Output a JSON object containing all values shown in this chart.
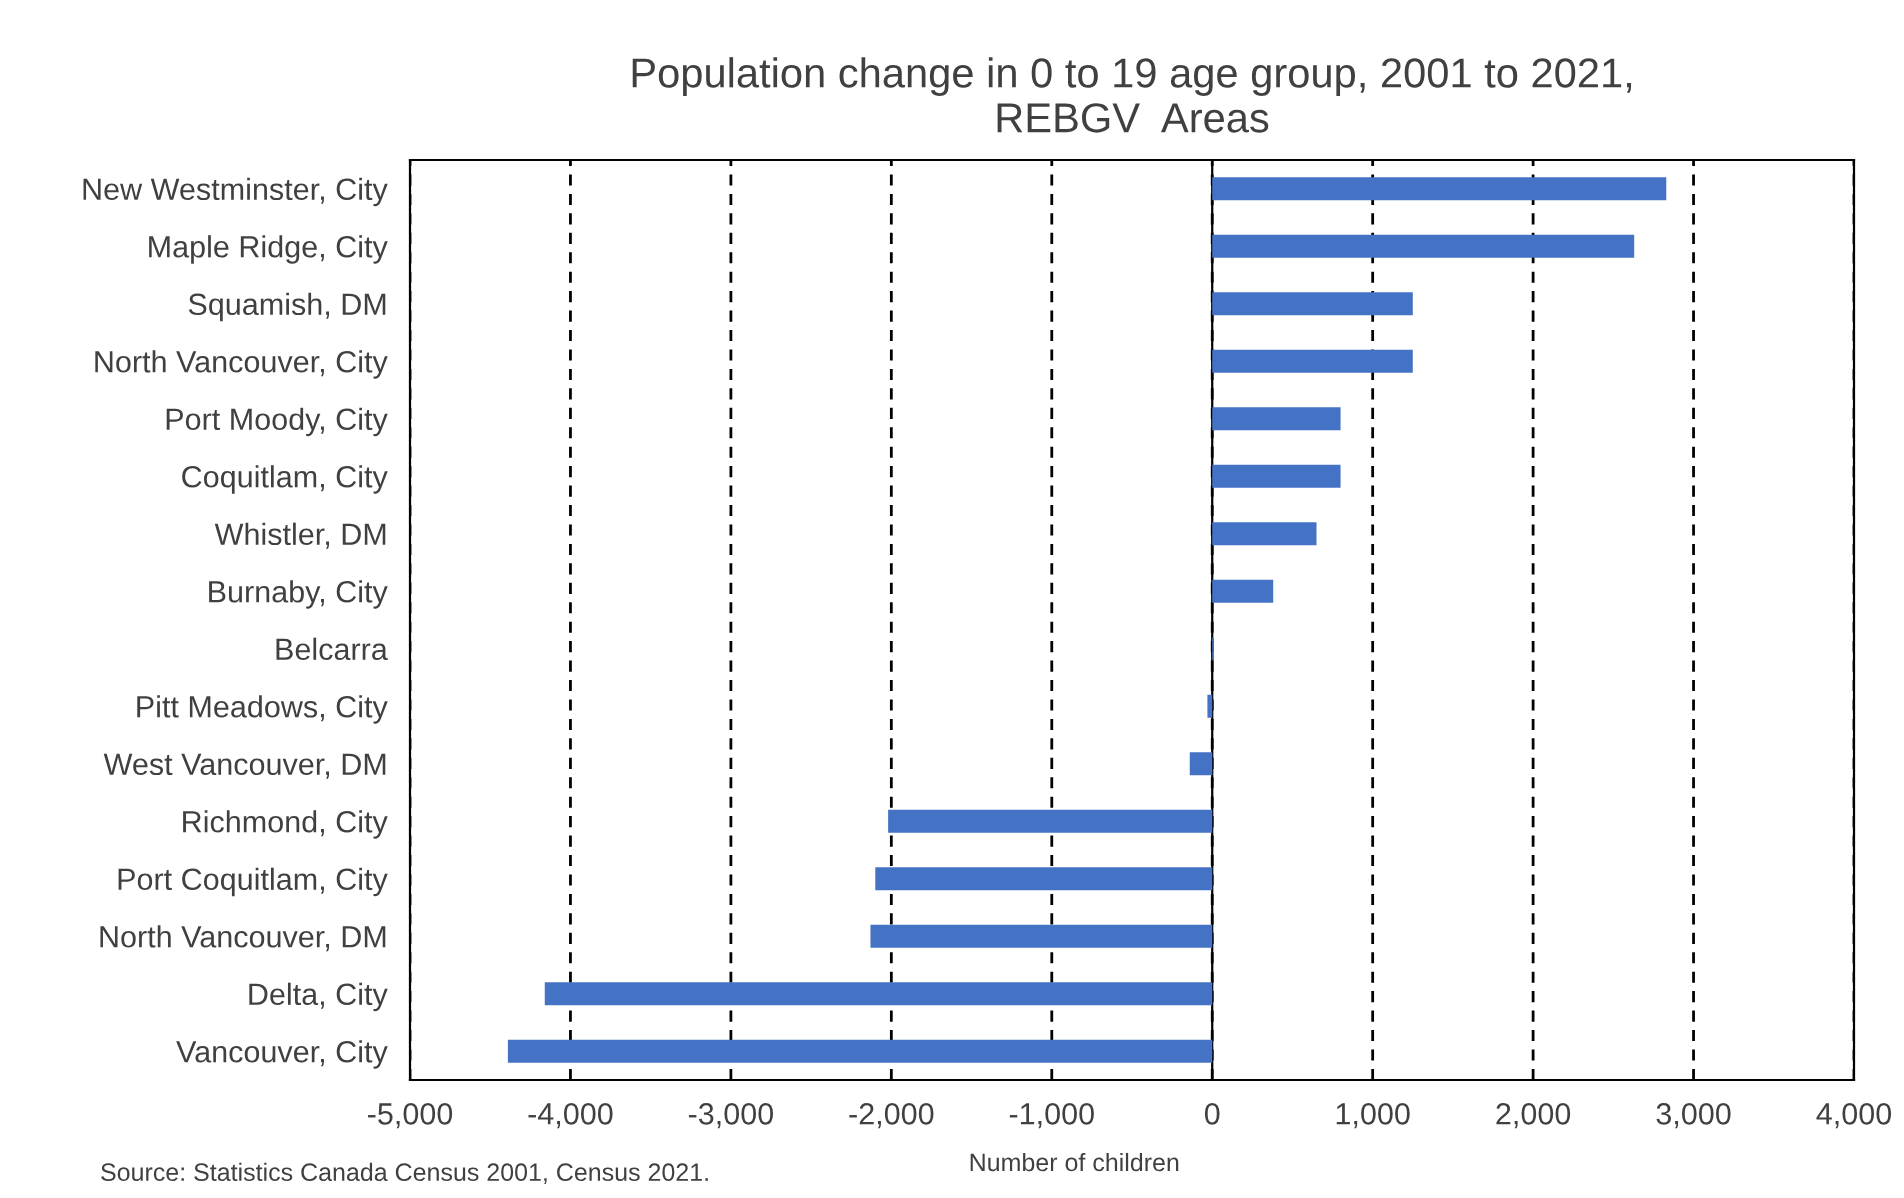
{
  "chart_data": {
    "type": "bar",
    "orientation": "horizontal",
    "title": "Population change in 0 to 19 age group, 2001 to 2021,\nREBGV  Areas",
    "xlabel": "Number of children",
    "annotations": [
      "Source: Statistics Canada Census 2001, Census 2021."
    ],
    "categories": [
      "New Westminster, City",
      "Maple Ridge, City",
      "Squamish, DM",
      "North Vancouver, City",
      "Port Moody, City",
      "Coquitlam, City",
      "Whistler, DM",
      "Burnaby, City",
      "Belcarra",
      "Pitt Meadows, City",
      "West Vancouver, DM",
      "Richmond, City",
      "Port Coquitlam, City",
      "North Vancouver, DM",
      "Delta, City",
      "Vancouver, City"
    ],
    "values": [
      2830,
      2630,
      1250,
      1250,
      800,
      800,
      650,
      380,
      10,
      -30,
      -140,
      -2020,
      -2100,
      -2130,
      -4160,
      -4390
    ],
    "color": "#4472c4",
    "xlim": [
      -5000,
      4000
    ],
    "xticks": [
      {
        "value": -5000,
        "label": "-5,000"
      },
      {
        "value": -4000,
        "label": "-4,000"
      },
      {
        "value": -3000,
        "label": "-3,000"
      },
      {
        "value": -2000,
        "label": "-2,000"
      },
      {
        "value": -1000,
        "label": "-1,000"
      },
      0,
      {
        "value": 1000,
        "label": "1,000"
      },
      {
        "value": 2000,
        "label": "2,000"
      },
      {
        "value": 3000,
        "label": "3,000"
      },
      {
        "value": 4000,
        "label": "4,000"
      }
    ],
    "grid": "x"
  }
}
